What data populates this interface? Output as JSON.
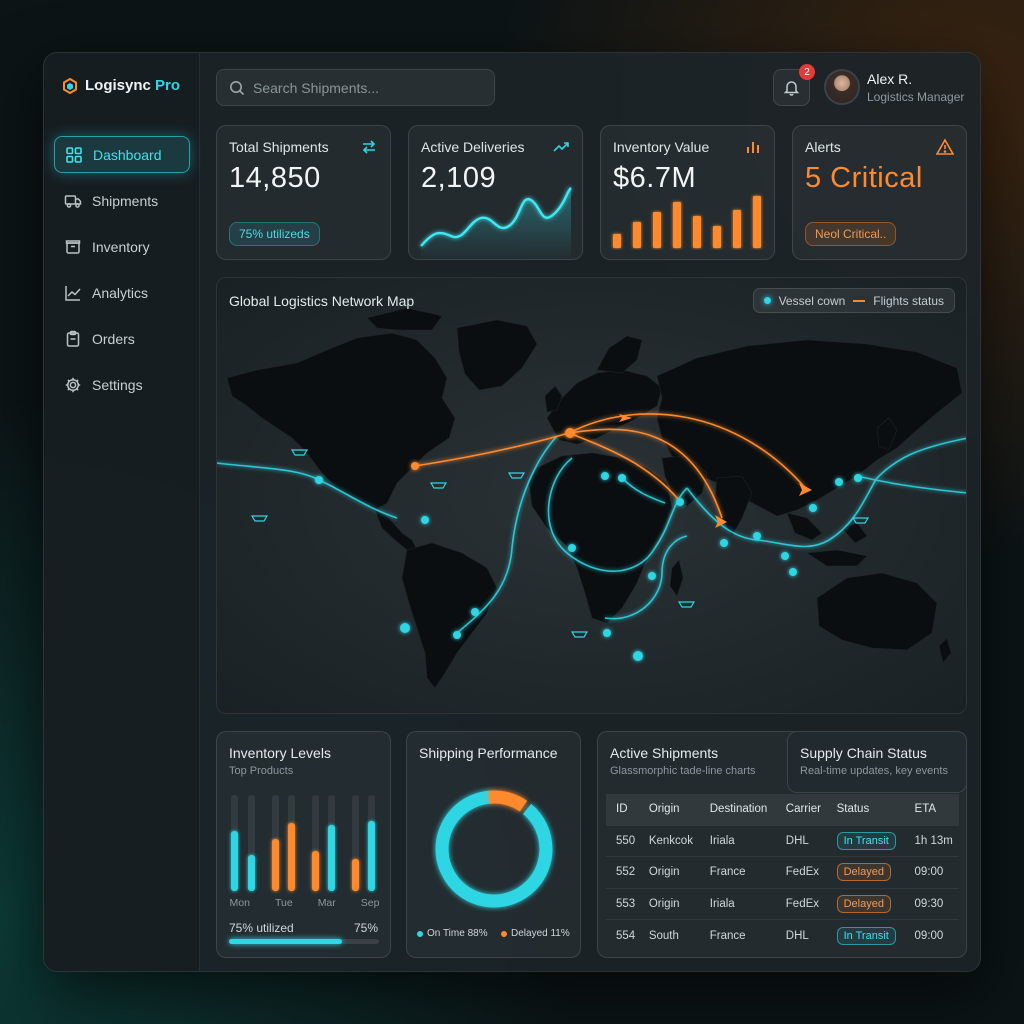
{
  "app": {
    "brand": "Logisync",
    "brand_suffix": "Pro"
  },
  "sidebar": {
    "items": [
      {
        "label": "Dashboard",
        "icon": "grid-icon",
        "active": true
      },
      {
        "label": "Shipments",
        "icon": "truck-icon"
      },
      {
        "label": "Inventory",
        "icon": "box-icon"
      },
      {
        "label": "Analytics",
        "icon": "chart-line-icon"
      },
      {
        "label": "Orders",
        "icon": "clipboard-icon"
      },
      {
        "label": "Settings",
        "icon": "gear-icon"
      }
    ]
  },
  "header": {
    "search_placeholder": "Search Shipments...",
    "notifications_count": "2",
    "user": {
      "name": "Alex R.",
      "role": "Logistics Manager"
    }
  },
  "kpis": {
    "total_shipments": {
      "title": "Total Shipments",
      "value": "14,850",
      "pill": "75% utilizeds"
    },
    "active_deliveries": {
      "title": "Active Deliveries",
      "value": "2,109"
    },
    "inventory_value": {
      "title": "Inventory Value",
      "value": "$6.7M"
    },
    "alerts": {
      "title": "Alerts",
      "value": "5 Critical",
      "pill": "Neol Critical.."
    }
  },
  "map": {
    "title": "Global Logistics Network Map",
    "legend": {
      "vessel": "Vessel cown",
      "flights": "Flights status"
    }
  },
  "inventory_levels": {
    "title": "Inventory Levels",
    "subtitle": "Top Products",
    "labels": [
      "Mon",
      "Tue",
      "Mar",
      "Sep"
    ],
    "utilized_label": "75% utilized",
    "utilized_value": "75%",
    "utilized_fraction": 0.75
  },
  "shipping_performance": {
    "title": "Shipping Performance",
    "on_time_label": "On Time 88%",
    "delayed_label": "Delayed 11%",
    "on_time_fraction": 0.88,
    "delayed_fraction": 0.11
  },
  "active_shipments": {
    "title": "Active Shipments",
    "subtitle": "Glassmorphic tade-line charts",
    "columns": [
      "ID",
      "Origin",
      "Destination",
      "Carrier",
      "Status",
      "ETA"
    ],
    "rows": [
      {
        "id": "550",
        "origin": "Kenkcok",
        "destination": "Iriala",
        "carrier": "DHL",
        "status": "In Transit",
        "eta": "1h 13m"
      },
      {
        "id": "552",
        "origin": "Origin",
        "destination": "France",
        "carrier": "FedEx",
        "status": "Delayed",
        "eta": "09:00"
      },
      {
        "id": "553",
        "origin": "Origin",
        "destination": "Iriala",
        "carrier": "FedEx",
        "status": "Delayed",
        "eta": "09:30"
      },
      {
        "id": "554",
        "origin": "South",
        "destination": "France",
        "carrier": "DHL",
        "status": "In Transit",
        "eta": "09:00"
      }
    ]
  },
  "supply_chain": {
    "title": "Supply Chain Status",
    "subtitle": "Real-time updates, key events"
  },
  "colors": {
    "accent": "#2fd6e3",
    "warning": "#ff8a2e",
    "danger": "#e23b3b"
  }
}
